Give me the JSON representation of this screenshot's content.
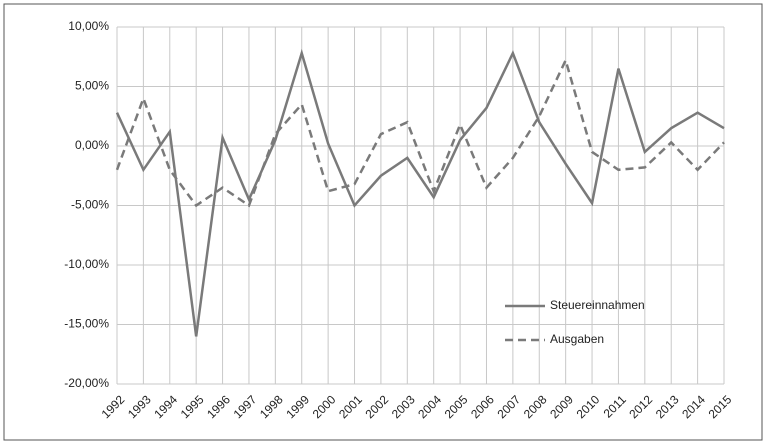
{
  "chart_data": {
    "type": "line",
    "categories": [
      "1992",
      "1993",
      "1994",
      "1995",
      "1996",
      "1997",
      "1998",
      "1999",
      "2000",
      "2001",
      "2002",
      "2003",
      "2004",
      "2005",
      "2006",
      "2007",
      "2008",
      "2009",
      "2010",
      "2011",
      "2012",
      "2013",
      "2014",
      "2015"
    ],
    "series": [
      {
        "name": "Steuereinnahmen",
        "color": "#7a7a7a",
        "style": "solid",
        "values": [
          2.8,
          -2.0,
          1.2,
          -16.0,
          0.7,
          -4.5,
          0.5,
          7.8,
          0.2,
          -5.0,
          -2.5,
          -1.0,
          -4.3,
          0.5,
          3.2,
          7.8,
          2.0,
          -1.5,
          -4.8,
          6.5,
          -0.5,
          1.5,
          2.8,
          1.5
        ]
      },
      {
        "name": "Ausgaben",
        "color": "#7a7a7a",
        "style": "dashed",
        "values": [
          -2.0,
          4.0,
          -2.0,
          -5.0,
          -3.5,
          -5.0,
          1.0,
          3.5,
          -3.8,
          -3.2,
          1.0,
          2.0,
          -3.8,
          1.8,
          -3.5,
          -1.0,
          2.5,
          7.2,
          -0.5,
          -2.0,
          -1.8,
          0.3,
          -2.0,
          0.3
        ]
      }
    ],
    "ylim": [
      -20,
      10
    ],
    "yticks": [
      {
        "value": -20,
        "label": "-20,00%"
      },
      {
        "value": -15,
        "label": "-15,00%"
      },
      {
        "value": -10,
        "label": "-10,00%"
      },
      {
        "value": -5,
        "label": "-5,00%"
      },
      {
        "value": 0,
        "label": "0,00%"
      },
      {
        "value": 5,
        "label": "5,00%"
      },
      {
        "value": 10,
        "label": "10,00%"
      }
    ],
    "grid": true,
    "legend": "lower right"
  }
}
